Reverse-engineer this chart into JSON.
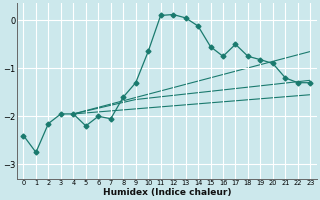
{
  "xlabel": "Humidex (Indice chaleur)",
  "bg_color": "#cce8ec",
  "grid_color": "#b8d8dc",
  "line_color": "#1a7a6e",
  "xlim": [
    -0.5,
    23.5
  ],
  "ylim": [
    -3.3,
    0.35
  ],
  "yticks": [
    0,
    -1,
    -2,
    -3
  ],
  "xticks": [
    0,
    1,
    2,
    3,
    4,
    5,
    6,
    7,
    8,
    9,
    10,
    11,
    12,
    13,
    14,
    15,
    16,
    17,
    18,
    19,
    20,
    21,
    22,
    23
  ],
  "main_x": [
    0,
    1,
    2,
    3,
    4,
    5,
    6,
    7,
    8,
    9,
    10,
    11,
    12,
    13,
    14,
    15,
    16,
    17,
    18,
    19,
    20,
    21,
    22,
    23
  ],
  "main_y": [
    -2.4,
    -2.75,
    -2.15,
    -1.95,
    -1.95,
    -2.2,
    -2.0,
    -2.05,
    -1.6,
    -1.3,
    -0.65,
    0.1,
    0.12,
    0.05,
    -0.12,
    -0.55,
    -0.75,
    -0.5,
    -0.75,
    -0.82,
    -0.9,
    -1.2,
    -1.3,
    -1.3
  ],
  "line1_x": [
    4,
    23
  ],
  "line1_y": [
    -1.95,
    -0.65
  ],
  "line2_x": [
    4,
    9,
    23
  ],
  "line2_y": [
    -1.95,
    -1.65,
    -1.25
  ],
  "line3_x": [
    4,
    23
  ],
  "line3_y": [
    -1.95,
    -1.55
  ]
}
